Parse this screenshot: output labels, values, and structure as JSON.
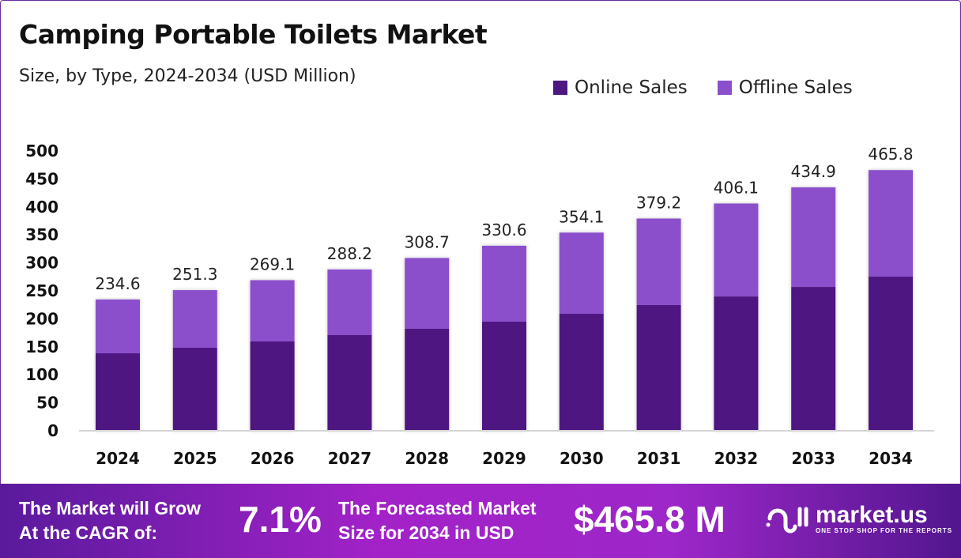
{
  "chart_data": {
    "type": "bar",
    "stacked": true,
    "title": "Camping Portable Toilets Market",
    "subtitle": "Size, by Type, 2024-2034 (USD Million)",
    "categories": [
      "2024",
      "2025",
      "2026",
      "2027",
      "2028",
      "2029",
      "2030",
      "2031",
      "2032",
      "2033",
      "2034"
    ],
    "series": [
      {
        "name": "Online Sales",
        "color": "#4e1680",
        "values": [
          138.4,
          148.3,
          159.6,
          170.9,
          182.2,
          194.9,
          209.0,
          224.6,
          240.0,
          257.0,
          275.4
        ]
      },
      {
        "name": "Offline Sales",
        "color": "#8b4fcc",
        "values": [
          96.2,
          103.0,
          109.5,
          117.3,
          126.5,
          135.7,
          145.1,
          154.6,
          166.1,
          177.9,
          190.4
        ]
      }
    ],
    "totals": [
      "234.6",
      "251.3",
      "269.1",
      "288.2",
      "308.7",
      "330.6",
      "354.1",
      "379.2",
      "406.1",
      "434.9",
      "465.8"
    ],
    "yticks": [
      "0",
      "50",
      "100",
      "150",
      "200",
      "250",
      "300",
      "350",
      "400",
      "450",
      "500"
    ],
    "ylim": [
      0,
      500
    ],
    "grid": false,
    "legend_placement": "top-right",
    "xlabel": "",
    "ylabel": ""
  },
  "footer": {
    "cagr_label_1": "The Market will Grow",
    "cagr_label_2": "At the CAGR of:",
    "cagr_value": "7.1%",
    "forecast_label_1": "The Forecasted Market",
    "forecast_label_2": "Size for 2034 in USD",
    "forecast_value": "$465.8 M",
    "logo_name": "market.us",
    "logo_tagline": "ONE STOP SHOP FOR THE REPORTS"
  }
}
